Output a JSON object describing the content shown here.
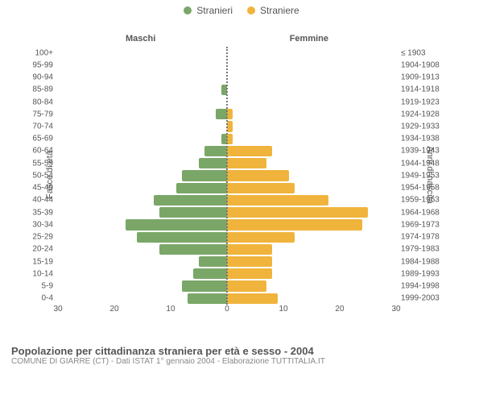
{
  "legend": {
    "male": {
      "label": "Stranieri",
      "color": "#7aa768"
    },
    "female": {
      "label": "Straniere",
      "color": "#f0b43c"
    }
  },
  "headings": {
    "left": "Maschi",
    "right": "Femmine"
  },
  "y_axis_left": "Fasce di età",
  "y_axis_right": "Anni di nascita",
  "x_axis": {
    "min": -30,
    "max": 30,
    "ticks": [
      30,
      20,
      10,
      0,
      10,
      20,
      30
    ]
  },
  "rows": [
    {
      "age": "100+",
      "birth": "≤ 1903",
      "m": 0,
      "f": 0
    },
    {
      "age": "95-99",
      "birth": "1904-1908",
      "m": 0,
      "f": 0
    },
    {
      "age": "90-94",
      "birth": "1909-1913",
      "m": 0,
      "f": 0
    },
    {
      "age": "85-89",
      "birth": "1914-1918",
      "m": 1,
      "f": 0
    },
    {
      "age": "80-84",
      "birth": "1919-1923",
      "m": 0,
      "f": 0
    },
    {
      "age": "75-79",
      "birth": "1924-1928",
      "m": 2,
      "f": 1
    },
    {
      "age": "70-74",
      "birth": "1929-1933",
      "m": 0,
      "f": 1
    },
    {
      "age": "65-69",
      "birth": "1934-1938",
      "m": 1,
      "f": 1
    },
    {
      "age": "60-64",
      "birth": "1939-1943",
      "m": 4,
      "f": 8
    },
    {
      "age": "55-59",
      "birth": "1944-1948",
      "m": 5,
      "f": 7
    },
    {
      "age": "50-54",
      "birth": "1949-1953",
      "m": 8,
      "f": 11
    },
    {
      "age": "45-49",
      "birth": "1954-1958",
      "m": 9,
      "f": 12
    },
    {
      "age": "40-44",
      "birth": "1959-1963",
      "m": 13,
      "f": 18
    },
    {
      "age": "35-39",
      "birth": "1964-1968",
      "m": 12,
      "f": 25
    },
    {
      "age": "30-34",
      "birth": "1969-1973",
      "m": 18,
      "f": 24
    },
    {
      "age": "25-29",
      "birth": "1974-1978",
      "m": 16,
      "f": 12
    },
    {
      "age": "20-24",
      "birth": "1979-1983",
      "m": 12,
      "f": 8
    },
    {
      "age": "15-19",
      "birth": "1984-1988",
      "m": 5,
      "f": 8
    },
    {
      "age": "10-14",
      "birth": "1989-1993",
      "m": 6,
      "f": 8
    },
    {
      "age": "5-9",
      "birth": "1994-1998",
      "m": 8,
      "f": 7
    },
    {
      "age": "0-4",
      "birth": "1999-2003",
      "m": 7,
      "f": 9
    }
  ],
  "footer": {
    "title": "Popolazione per cittadinanza straniera per età e sesso - 2004",
    "subtitle": "COMUNE DI GIARRE (CT) - Dati ISTAT 1° gennaio 2004 - Elaborazione TUTTITALIA.IT"
  },
  "colors": {
    "male_bar": "#7aa768",
    "female_bar": "#f0b43c",
    "background": "#ffffff",
    "text": "#555555",
    "subtext": "#888888",
    "center_line": "#777777"
  },
  "chart_type": "population_pyramid"
}
